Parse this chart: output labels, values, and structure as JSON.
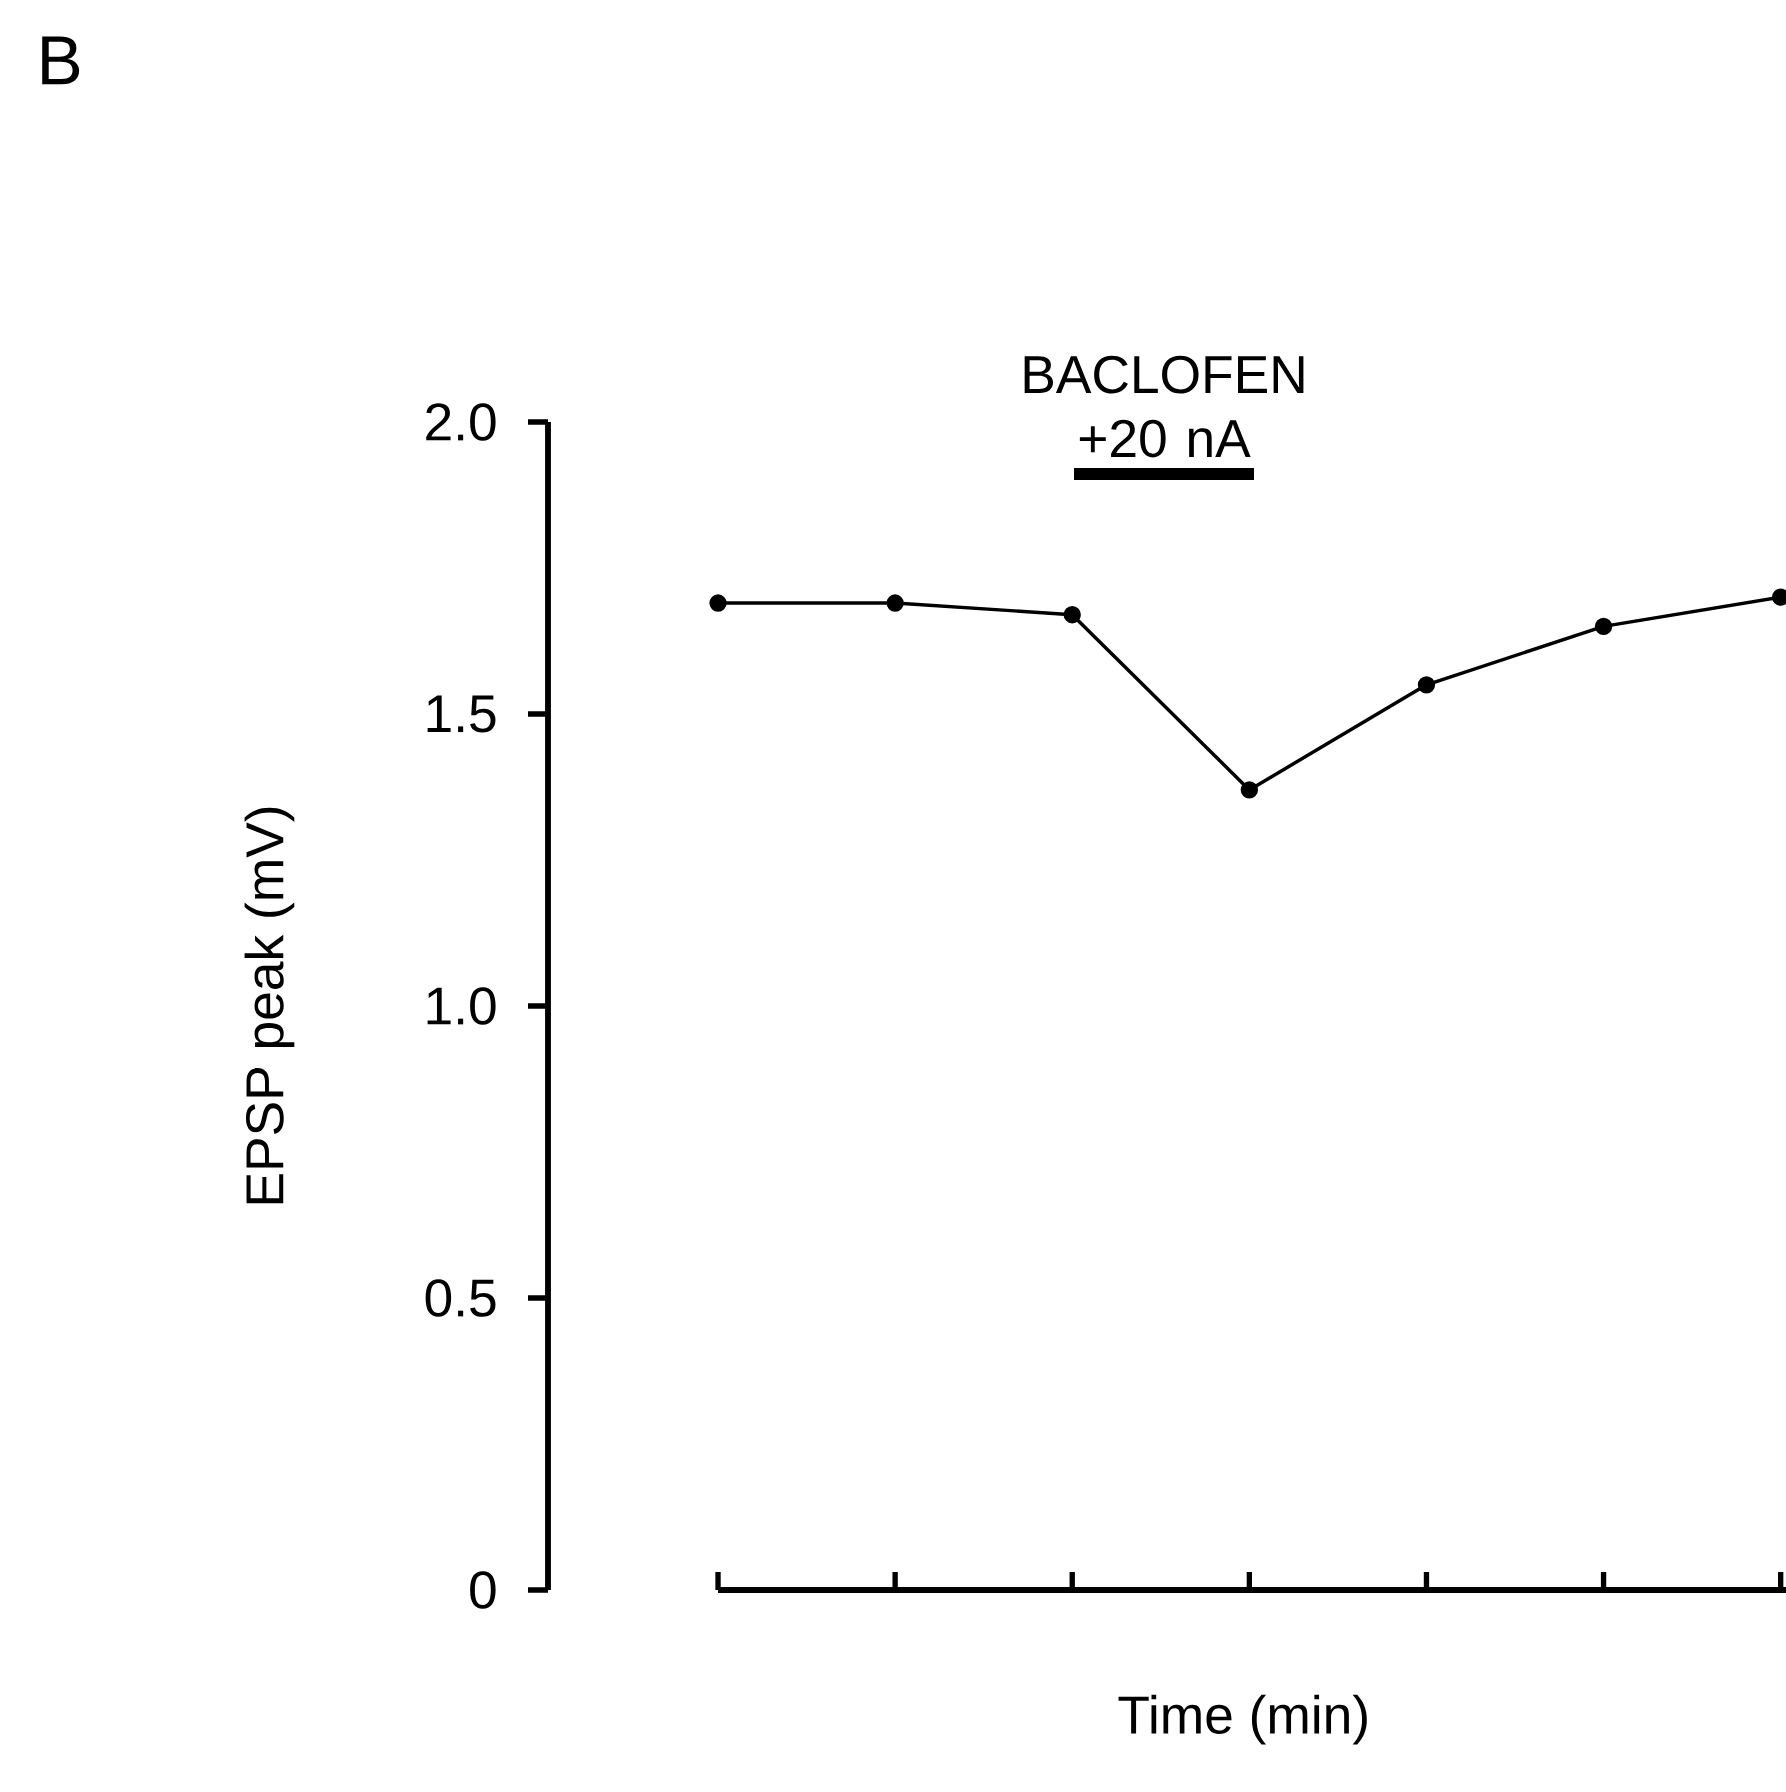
{
  "chart_data": {
    "type": "line",
    "categories": [
      null,
      null,
      null,
      null,
      null,
      null,
      null
    ],
    "values": [
      1.69,
      1.69,
      1.67,
      1.37,
      1.55,
      1.65,
      1.7
    ],
    "color": "#000000",
    "marker": "circle",
    "line_style": "solid",
    "grid": false,
    "ylim": [
      0,
      2.0
    ],
    "yticks": [
      0,
      0.5,
      {
        "value": 1.0,
        "label": "1.0"
      },
      1.5,
      {
        "value": 2.0,
        "label": "2.0"
      }
    ],
    "xlabel": "Time (min)",
    "ylabel": "EPSP peak (mV)",
    "annotations": [
      "B",
      "BACLOFEN +20 nA"
    ]
  }
}
